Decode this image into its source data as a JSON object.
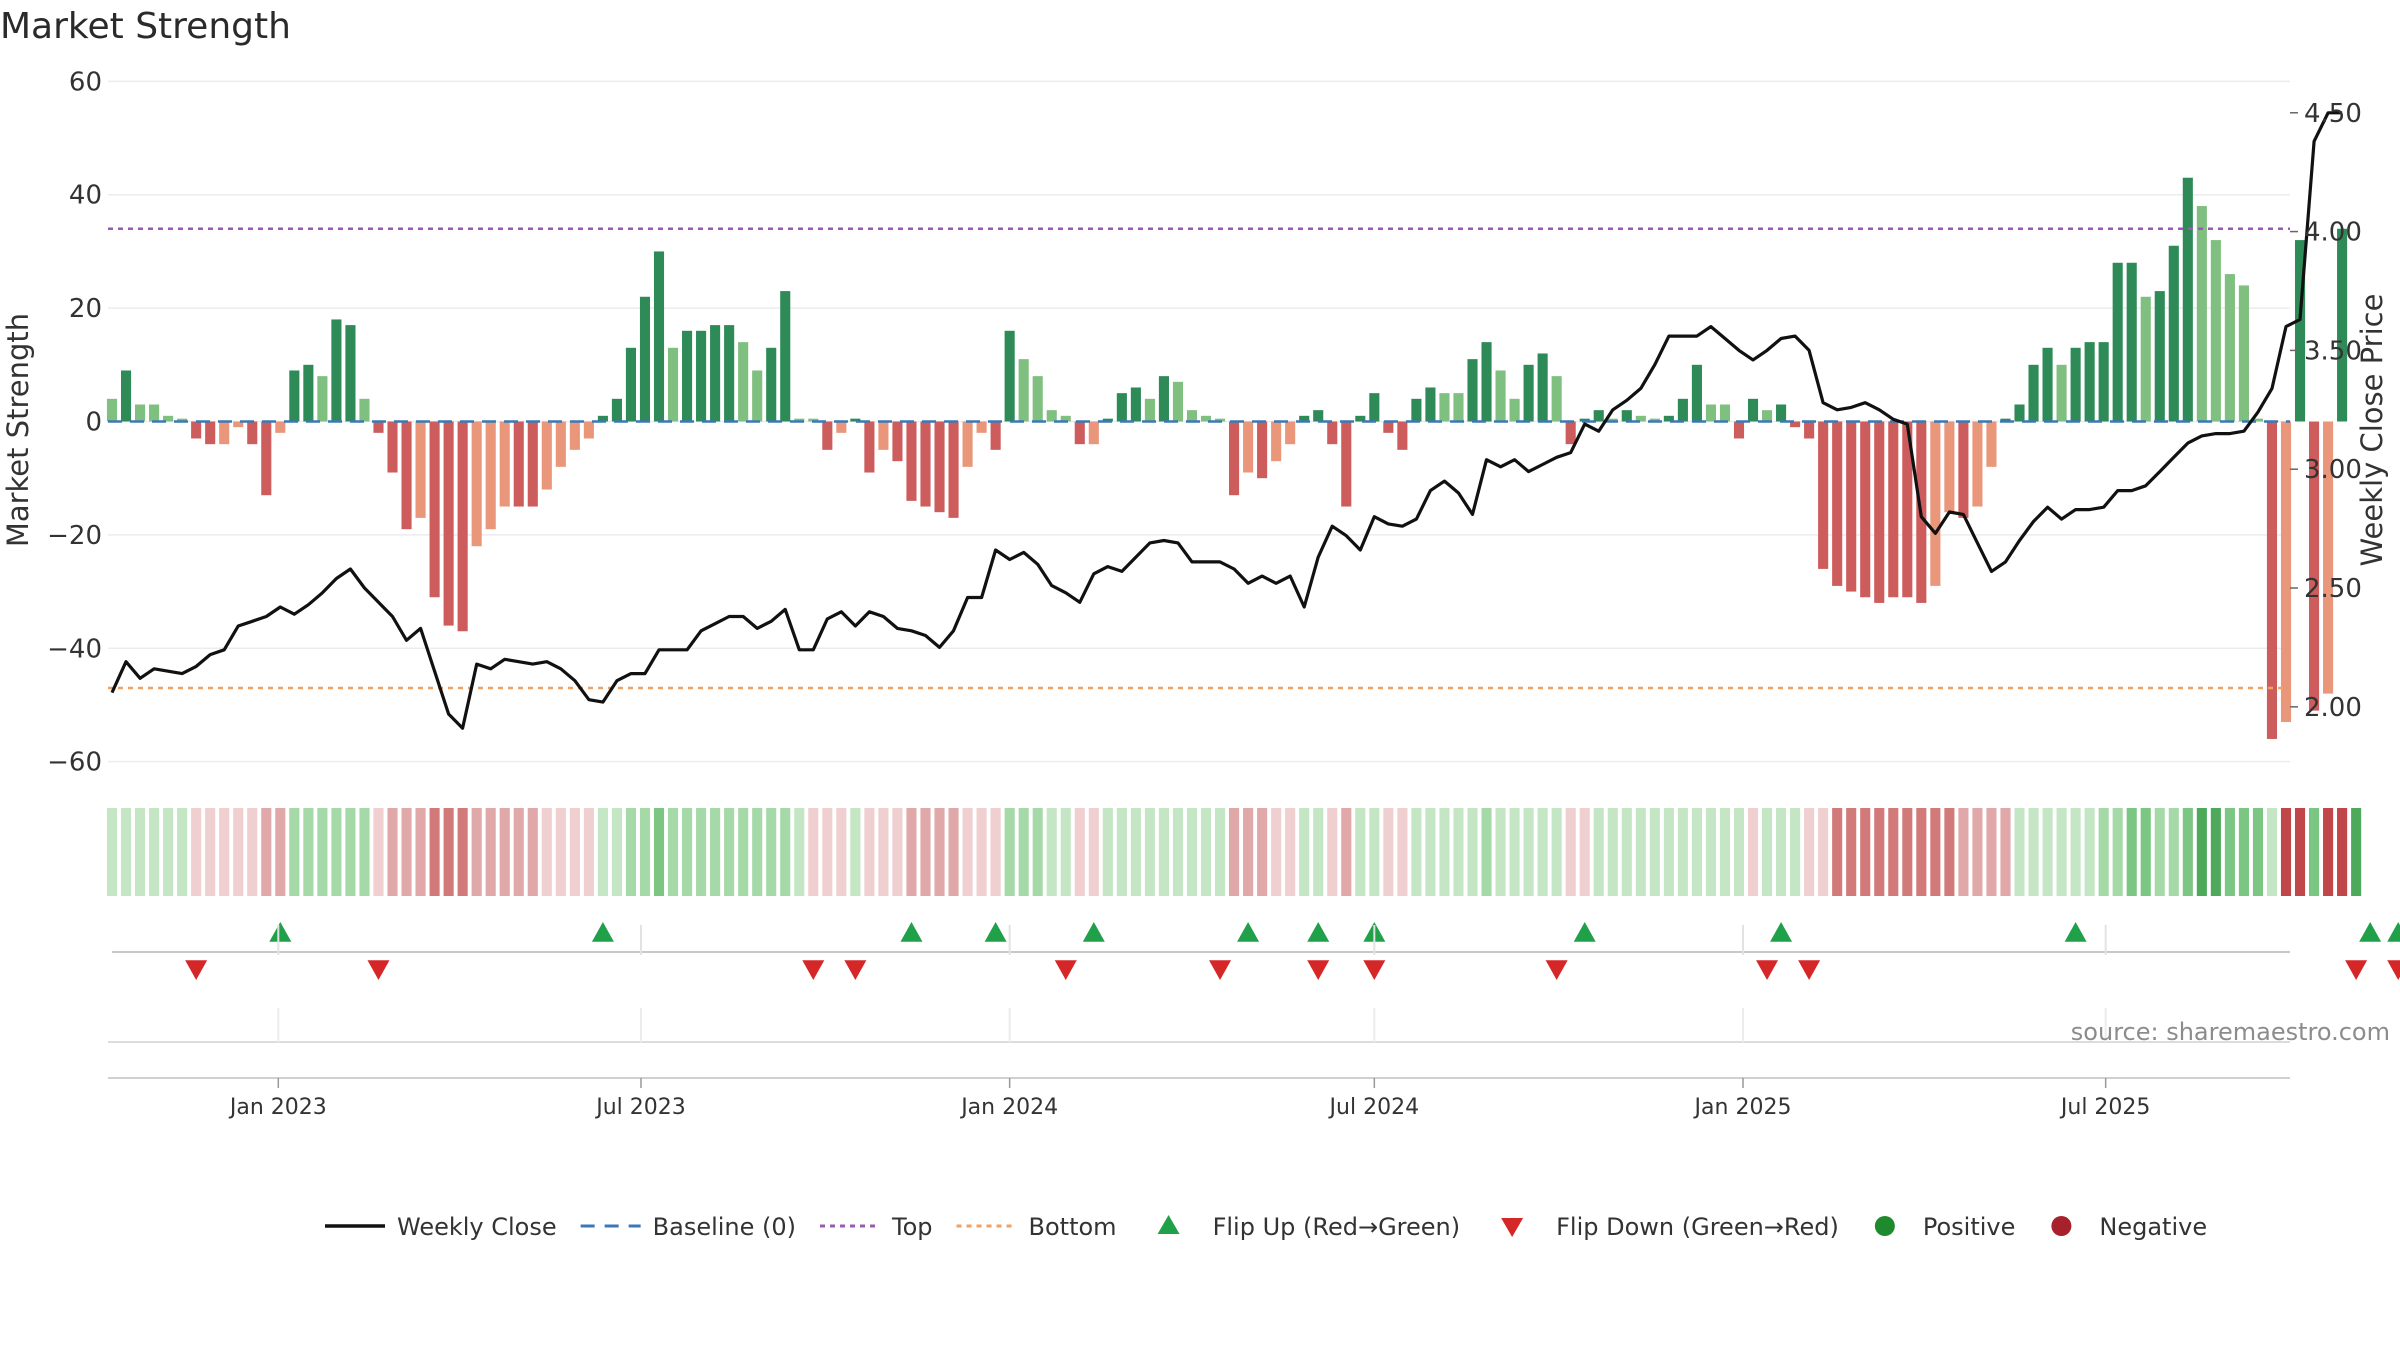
{
  "title": "Market Strength",
  "source": "source: sharemaestro.com",
  "chart_data": {
    "type": "bar",
    "title": "Market Strength",
    "ylabel": "Market Strength",
    "y2label": "Weekly Close Price",
    "ylim": [
      -65,
      62
    ],
    "y2lim": [
      1.65,
      4.68
    ],
    "yticks": [
      60,
      40,
      20,
      0,
      -20,
      -40,
      -60
    ],
    "y2ticks": [
      4.5,
      4.0,
      3.5,
      3.0,
      2.5,
      2.0
    ],
    "y2tick_labels": [
      "4.50",
      "4.00",
      "3.50",
      "3.00",
      "2.50",
      "2.00"
    ],
    "x_start": "2022-10-10",
    "x_end": "2025-09-29",
    "x_step_days": 7,
    "x_ticks": [
      {
        "date": "2023-01-01",
        "label": "Jan 2023"
      },
      {
        "date": "2023-07-01",
        "label": "Jul 2023"
      },
      {
        "date": "2024-01-01",
        "label": "Jan 2024"
      },
      {
        "date": "2024-07-01",
        "label": "Jul 2024"
      },
      {
        "date": "2025-01-01",
        "label": "Jan 2025"
      },
      {
        "date": "2025-07-01",
        "label": "Jul 2025"
      }
    ],
    "top_line": 34,
    "bottom_line": -47,
    "grid": true,
    "series": [
      {
        "name": "Market Strength",
        "type": "bar",
        "values": [
          4,
          9,
          3,
          3,
          1,
          0.5,
          -3,
          -4,
          -4,
          -1,
          -4,
          -13,
          -2,
          9,
          10,
          8,
          18,
          17,
          4,
          -2,
          -9,
          -19,
          -17,
          -31,
          -36,
          -37,
          -22,
          -19,
          -15,
          -15,
          -15,
          -12,
          -8,
          -5,
          -3,
          1,
          4,
          13,
          22,
          30,
          13,
          16,
          16,
          17,
          17,
          14,
          9,
          13,
          23,
          0.5,
          0.5,
          -5,
          -2,
          0.5,
          -9,
          -5,
          -7,
          -14,
          -15,
          -16,
          -17,
          -8,
          -2,
          -5,
          16,
          11,
          8,
          2,
          1,
          -4,
          -4,
          0.5,
          5,
          6,
          4,
          8,
          7,
          2,
          1,
          0.5,
          -13,
          -9,
          -10,
          -7,
          -4,
          1,
          2,
          -4,
          -15,
          1,
          5,
          -2,
          -5,
          4,
          6,
          5,
          5,
          11,
          14,
          9,
          4,
          10,
          12,
          8,
          -4,
          0.5,
          2,
          0.5,
          2,
          1,
          0.5,
          1,
          4,
          10,
          3,
          3,
          -3,
          4,
          2,
          3,
          -1,
          -3,
          -26,
          -29,
          -30,
          -31,
          -32,
          -31,
          -31,
          -32,
          -29,
          -16,
          -17,
          -15,
          -8,
          0.5,
          3,
          10,
          13,
          10,
          13,
          14,
          14,
          28,
          28,
          22,
          23,
          31,
          43,
          38,
          32,
          26,
          24,
          0.5,
          -56,
          -53,
          32,
          -51,
          -48,
          34
        ]
      },
      {
        "name": "Weekly Close",
        "type": "line",
        "values": [
          2.06,
          2.19,
          2.12,
          2.16,
          2.15,
          2.14,
          2.17,
          2.22,
          2.24,
          2.34,
          2.36,
          2.38,
          2.42,
          2.39,
          2.43,
          2.48,
          2.54,
          2.58,
          2.5,
          2.44,
          2.38,
          2.28,
          2.33,
          2.15,
          1.97,
          1.91,
          2.18,
          2.16,
          2.2,
          2.19,
          2.18,
          2.19,
          2.16,
          2.11,
          2.03,
          2.02,
          2.11,
          2.14,
          2.14,
          2.24,
          2.24,
          2.24,
          2.32,
          2.35,
          2.38,
          2.38,
          2.33,
          2.36,
          2.41,
          2.24,
          2.24,
          2.37,
          2.4,
          2.34,
          2.4,
          2.38,
          2.33,
          2.32,
          2.3,
          2.25,
          2.32,
          2.46,
          2.46,
          2.66,
          2.62,
          2.65,
          2.6,
          2.51,
          2.48,
          2.44,
          2.56,
          2.59,
          2.57,
          2.63,
          2.69,
          2.7,
          2.69,
          2.61,
          2.61,
          2.61,
          2.58,
          2.52,
          2.55,
          2.52,
          2.55,
          2.42,
          2.63,
          2.76,
          2.72,
          2.66,
          2.8,
          2.77,
          2.76,
          2.79,
          2.91,
          2.95,
          2.9,
          2.81,
          3.04,
          3.01,
          3.04,
          2.99,
          3.02,
          3.05,
          3.07,
          3.19,
          3.16,
          3.25,
          3.29,
          3.34,
          3.44,
          3.56,
          3.56,
          3.56,
          3.6,
          3.55,
          3.5,
          3.46,
          3.5,
          3.55,
          3.56,
          3.5,
          3.28,
          3.25,
          3.26,
          3.28,
          3.25,
          3.21,
          3.19,
          2.8,
          2.73,
          2.82,
          2.81,
          2.69,
          2.57,
          2.61,
          2.7,
          2.78,
          2.84,
          2.79,
          2.83,
          2.83,
          2.84,
          2.91,
          2.91,
          2.93,
          2.99,
          3.05,
          3.11,
          3.14,
          3.15,
          3.15,
          3.16,
          3.24,
          3.34,
          3.6,
          3.63,
          4.38,
          4.5,
          4.5
        ]
      }
    ],
    "flip_up_weeks": [
      12,
      35,
      57,
      63,
      70,
      81,
      86,
      90,
      105,
      119,
      140,
      161,
      163
    ],
    "flip_down_weeks": [
      6,
      19,
      50,
      53,
      68,
      79,
      86,
      90,
      103,
      118,
      121,
      160,
      163
    ],
    "state_strip_levels": [
      1,
      1,
      1,
      1,
      1,
      1,
      -1,
      -1,
      -1,
      -1,
      -1,
      -2,
      -2,
      2,
      2,
      2,
      2,
      2,
      2,
      -1,
      -2,
      -2,
      -2,
      -3,
      -3,
      -3,
      -2,
      -2,
      -2,
      -2,
      -2,
      -1,
      -1,
      -1,
      -1,
      1,
      1,
      2,
      2,
      3,
      2,
      2,
      2,
      2,
      2,
      2,
      2,
      2,
      2,
      1,
      -1,
      -1,
      -1,
      1,
      -1,
      -1,
      -1,
      -2,
      -2,
      -2,
      -2,
      -1,
      -1,
      -1,
      2,
      2,
      2,
      1,
      1,
      -1,
      -1,
      1,
      1,
      1,
      1,
      1,
      1,
      1,
      1,
      1,
      -2,
      -2,
      -2,
      -1,
      -1,
      1,
      1,
      -1,
      -2,
      1,
      1,
      -1,
      -1,
      1,
      1,
      1,
      1,
      1,
      2,
      1,
      1,
      1,
      1,
      1,
      -1,
      -1,
      1,
      1,
      1,
      1,
      1,
      1,
      1,
      1,
      1,
      1,
      1,
      -1,
      1,
      1,
      1,
      -1,
      -1,
      -3,
      -3,
      -3,
      -3,
      -3,
      -3,
      -3,
      -3,
      -3,
      -2,
      -2,
      -2,
      -2,
      1,
      1,
      1,
      1,
      1,
      1,
      2,
      2,
      3,
      3,
      2,
      2,
      3,
      4,
      4,
      3,
      3,
      3,
      1,
      -4,
      -4,
      3,
      -4,
      -4,
      4
    ],
    "legend": [
      {
        "label": "Weekly Close",
        "kind": "line",
        "color": "#111111"
      },
      {
        "label": "Baseline (0)",
        "kind": "dash",
        "color": "#3b78b4"
      },
      {
        "label": "Top",
        "kind": "dot",
        "color": "#9b59b6"
      },
      {
        "label": "Bottom",
        "kind": "dot",
        "color": "#f0a060"
      },
      {
        "label": "Flip Up (Red→Green)",
        "kind": "tri-up",
        "color": "#21a04a"
      },
      {
        "label": "Flip Down (Green→Red)",
        "kind": "tri-down",
        "color": "#d62728"
      },
      {
        "label": "Positive",
        "kind": "dot-marker",
        "color": "#1f8a2d"
      },
      {
        "label": "Negative",
        "kind": "dot-marker",
        "color": "#a8202a"
      }
    ],
    "colors": {
      "pos_strong": "#2e8b57",
      "pos_light": "#7fbf7f",
      "neg_strong": "#cd5c5c",
      "neg_light": "#e9967a",
      "top": "#9b59b6",
      "bottom": "#f0a060",
      "baseline": "#3b78b4",
      "line": "#111111",
      "flip_up": "#21a04a",
      "flip_down": "#d62728"
    }
  }
}
